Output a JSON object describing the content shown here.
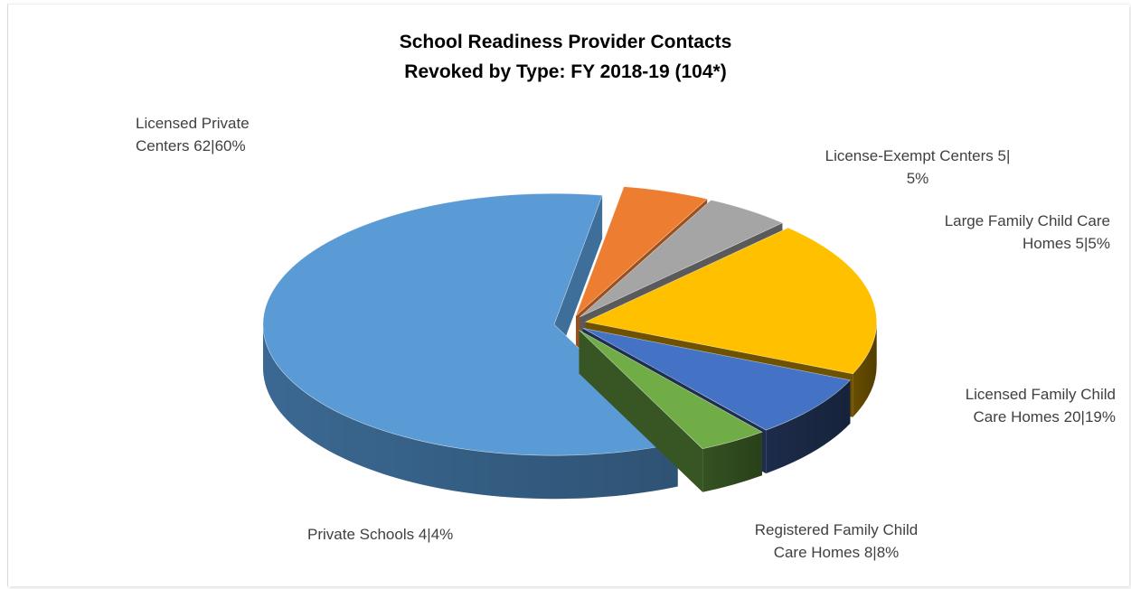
{
  "chart_data": {
    "type": "pie",
    "title_lines": [
      "School Readiness Provider Contacts",
      "Revoked by Type: FY 2018-19 (104*)"
    ],
    "slices": [
      {
        "name": "Licensed Private Centers",
        "value": 62,
        "percent": 60,
        "color": "#5B9BD5",
        "side_color": "#3E6E9A",
        "label_lines": [
          "Licensed Private",
          "Centers 62|60%"
        ]
      },
      {
        "name": "License-Exempt Centers",
        "value": 5,
        "percent": 5,
        "color": "#ED7D31",
        "side_color": "#9C4E1B",
        "label_lines": [
          "License-Exempt Centers 5|",
          "5%"
        ]
      },
      {
        "name": "Large Family Child Care Homes",
        "value": 5,
        "percent": 5,
        "color": "#A5A5A5",
        "side_color": "#5A5A5A",
        "label_lines": [
          "Large Family Child Care",
          "Homes 5|5%"
        ]
      },
      {
        "name": "Licensed Family Child Care Homes",
        "value": 20,
        "percent": 19,
        "color": "#FFC000",
        "side_color": "#6E5200",
        "label_lines": [
          "Licensed Family Child",
          "Care Homes 20|19%"
        ]
      },
      {
        "name": "Registered Family Child Care Homes",
        "value": 8,
        "percent": 8,
        "color": "#4472C4",
        "side_color": "#1E2E4E",
        "label_lines": [
          "Registered Family Child",
          "Care Homes 8|8%"
        ]
      },
      {
        "name": "Private Schools",
        "value": 4,
        "percent": 4,
        "color": "#70AD47",
        "side_color": "#375623",
        "label_lines": [
          "Private Schools 4|4%"
        ]
      }
    ],
    "legend": "none",
    "style": "3d-exploded"
  }
}
